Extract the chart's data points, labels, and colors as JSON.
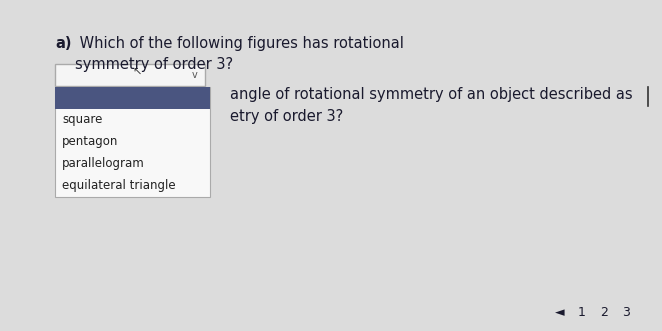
{
  "bg_color": "#d8d8d8",
  "page_bg": "#e8e8e8",
  "title_bold": "a)",
  "title_rest": " Which of the following figures has rotational\nsymmetry of order 3?",
  "dropdown_bg": "#f0f0f0",
  "dropdown_border": "#aaaaaa",
  "highlight_color": "#4a5580",
  "menu_items": [
    "square",
    "pentagon",
    "parallelogram",
    "equilateral triangle"
  ],
  "right_line1": "angle of rotational symmetry of an object described as",
  "right_line2": "etry of order 3?",
  "nav_arrow": "◄",
  "nav_pages": [
    "1",
    "2",
    "3"
  ],
  "text_color": "#1a1a2e",
  "menu_text_color": "#222222",
  "font_size_title": 10.5,
  "font_size_menu": 8.5,
  "font_size_nav": 9
}
